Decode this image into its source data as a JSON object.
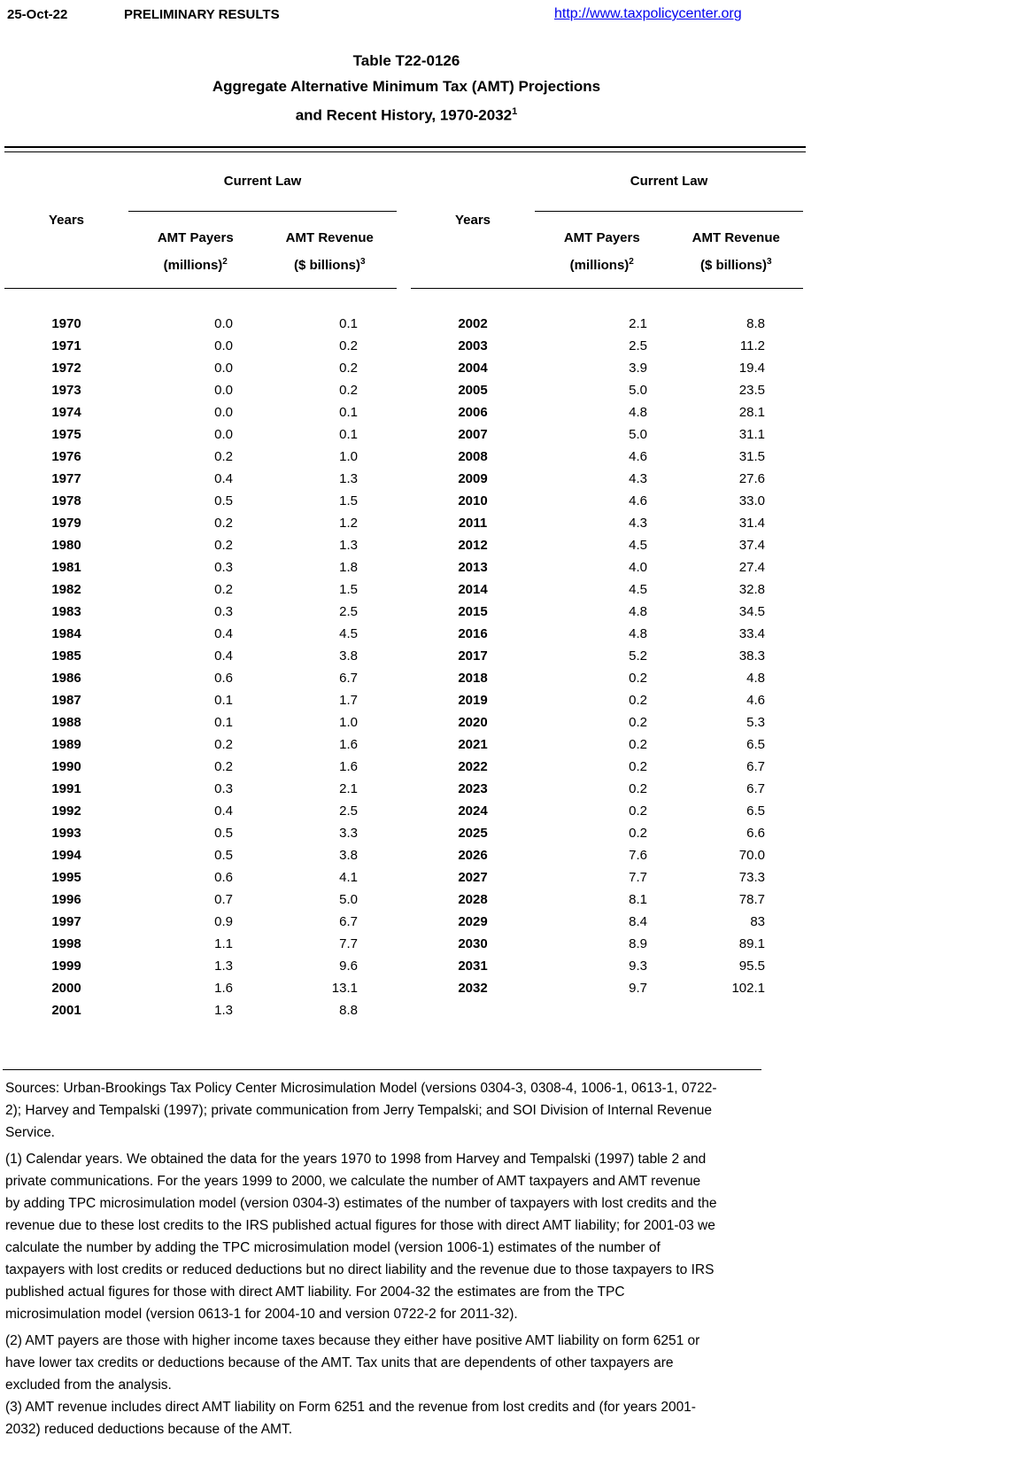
{
  "header": {
    "date": "25-Oct-22",
    "status": "PRELIMINARY RESULTS",
    "link": "http://www.taxpolicycenter.org"
  },
  "title": {
    "line1": "Table T22-0126",
    "line2": "Aggregate Alternative Minimum Tax (AMT) Projections",
    "line3": "and Recent History, 1970-2032",
    "superscript": "1"
  },
  "table": {
    "spanner_label": "Current Law",
    "years_label": "Years",
    "payers_header": "AMT Payers",
    "payers_unit": "(millions)",
    "payers_sup": "2",
    "revenue_header": "AMT Revenue",
    "revenue_unit": "($ billions)",
    "revenue_sup": "3",
    "left_rows": [
      [
        "1970",
        "0.0",
        "0.1"
      ],
      [
        "1971",
        "0.0",
        "0.2"
      ],
      [
        "1972",
        "0.0",
        "0.2"
      ],
      [
        "1973",
        "0.0",
        "0.2"
      ],
      [
        "1974",
        "0.0",
        "0.1"
      ],
      [
        "1975",
        "0.0",
        "0.1"
      ],
      [
        "1976",
        "0.2",
        "1.0"
      ],
      [
        "1977",
        "0.4",
        "1.3"
      ],
      [
        "1978",
        "0.5",
        "1.5"
      ],
      [
        "1979",
        "0.2",
        "1.2"
      ],
      [
        "1980",
        "0.2",
        "1.3"
      ],
      [
        "1981",
        "0.3",
        "1.8"
      ],
      [
        "1982",
        "0.2",
        "1.5"
      ],
      [
        "1983",
        "0.3",
        "2.5"
      ],
      [
        "1984",
        "0.4",
        "4.5"
      ],
      [
        "1985",
        "0.4",
        "3.8"
      ],
      [
        "1986",
        "0.6",
        "6.7"
      ],
      [
        "1987",
        "0.1",
        "1.7"
      ],
      [
        "1988",
        "0.1",
        "1.0"
      ],
      [
        "1989",
        "0.2",
        "1.6"
      ],
      [
        "1990",
        "0.2",
        "1.6"
      ],
      [
        "1991",
        "0.3",
        "2.1"
      ],
      [
        "1992",
        "0.4",
        "2.5"
      ],
      [
        "1993",
        "0.5",
        "3.3"
      ],
      [
        "1994",
        "0.5",
        "3.8"
      ],
      [
        "1995",
        "0.6",
        "4.1"
      ],
      [
        "1996",
        "0.7",
        "5.0"
      ],
      [
        "1997",
        "0.9",
        "6.7"
      ],
      [
        "1998",
        "1.1",
        "7.7"
      ],
      [
        "1999",
        "1.3",
        "9.6"
      ],
      [
        "2000",
        "1.6",
        "13.1"
      ],
      [
        "2001",
        "1.3",
        "8.8"
      ]
    ],
    "right_rows": [
      [
        "2002",
        "2.1",
        "8.8"
      ],
      [
        "2003",
        "2.5",
        "11.2"
      ],
      [
        "2004",
        "3.9",
        "19.4"
      ],
      [
        "2005",
        "5.0",
        "23.5"
      ],
      [
        "2006",
        "4.8",
        "28.1"
      ],
      [
        "2007",
        "5.0",
        "31.1"
      ],
      [
        "2008",
        "4.6",
        "31.5"
      ],
      [
        "2009",
        "4.3",
        "27.6"
      ],
      [
        "2010",
        "4.6",
        "33.0"
      ],
      [
        "2011",
        "4.3",
        "31.4"
      ],
      [
        "2012",
        "4.5",
        "37.4"
      ],
      [
        "2013",
        "4.0",
        "27.4"
      ],
      [
        "2014",
        "4.5",
        "32.8"
      ],
      [
        "2015",
        "4.8",
        "34.5"
      ],
      [
        "2016",
        "4.8",
        "33.4"
      ],
      [
        "2017",
        "5.2",
        "38.3"
      ],
      [
        "2018",
        "0.2",
        "4.8"
      ],
      [
        "2019",
        "0.2",
        "4.6"
      ],
      [
        "2020",
        "0.2",
        "5.3"
      ],
      [
        "2021",
        "0.2",
        "6.5"
      ],
      [
        "2022",
        "0.2",
        "6.7"
      ],
      [
        "2023",
        "0.2",
        "6.7"
      ],
      [
        "2024",
        "0.2",
        "6.5"
      ],
      [
        "2025",
        "0.2",
        "6.6"
      ],
      [
        "2026",
        "7.6",
        "70.0"
      ],
      [
        "2027",
        "7.7",
        "73.3"
      ],
      [
        "2028",
        "8.1",
        "78.7"
      ],
      [
        "2029",
        "8.4",
        "83"
      ],
      [
        "2030",
        "8.9",
        "89.1"
      ],
      [
        "2031",
        "9.3",
        "95.5"
      ],
      [
        "2032",
        "9.7",
        "102.1"
      ]
    ]
  },
  "footnotes": {
    "sources": "Sources: Urban-Brookings Tax Policy Center Microsimulation Model (versions 0304-3, 0308-4, 1006-1, 0613-1, 0722-2); Harvey and Tempalski (1997); private communication from Jerry Tempalski; and SOI Division of Internal Revenue Service.",
    "note1": "(1) Calendar years. We obtained the data for the years 1970 to 1998 from Harvey and Tempalski (1997) table 2 and private communications. For the years 1999 to 2000, we calculate the number of AMT taxpayers and AMT revenue by adding TPC microsimulation model (version 0304-3) estimates of the number of taxpayers with lost credits and the revenue due to these lost credits to the IRS published actual figures for those with direct AMT liability; for 2001-03 we calculate the number by adding the TPC microsimulation model (version 1006-1) estimates of the number of taxpayers with lost credits or reduced deductions but no direct liability and the revenue due to those taxpayers to IRS published actual figures for those with direct AMT liability. For 2004-32 the estimates are from the TPC microsimulation model (version 0613-1 for 2004-10 and version 0722-2 for 2011-32).",
    "note2": "(2) AMT payers are those with higher income taxes because they either have positive AMT liability on form 6251 or have lower tax credits or deductions because of the AMT. Tax units that are dependents of other taxpayers are excluded from the analysis.",
    "note3": "(3) AMT revenue includes direct AMT liability on Form 6251 and the revenue from lost credits and (for years 2001-2032) reduced deductions because of the AMT."
  }
}
